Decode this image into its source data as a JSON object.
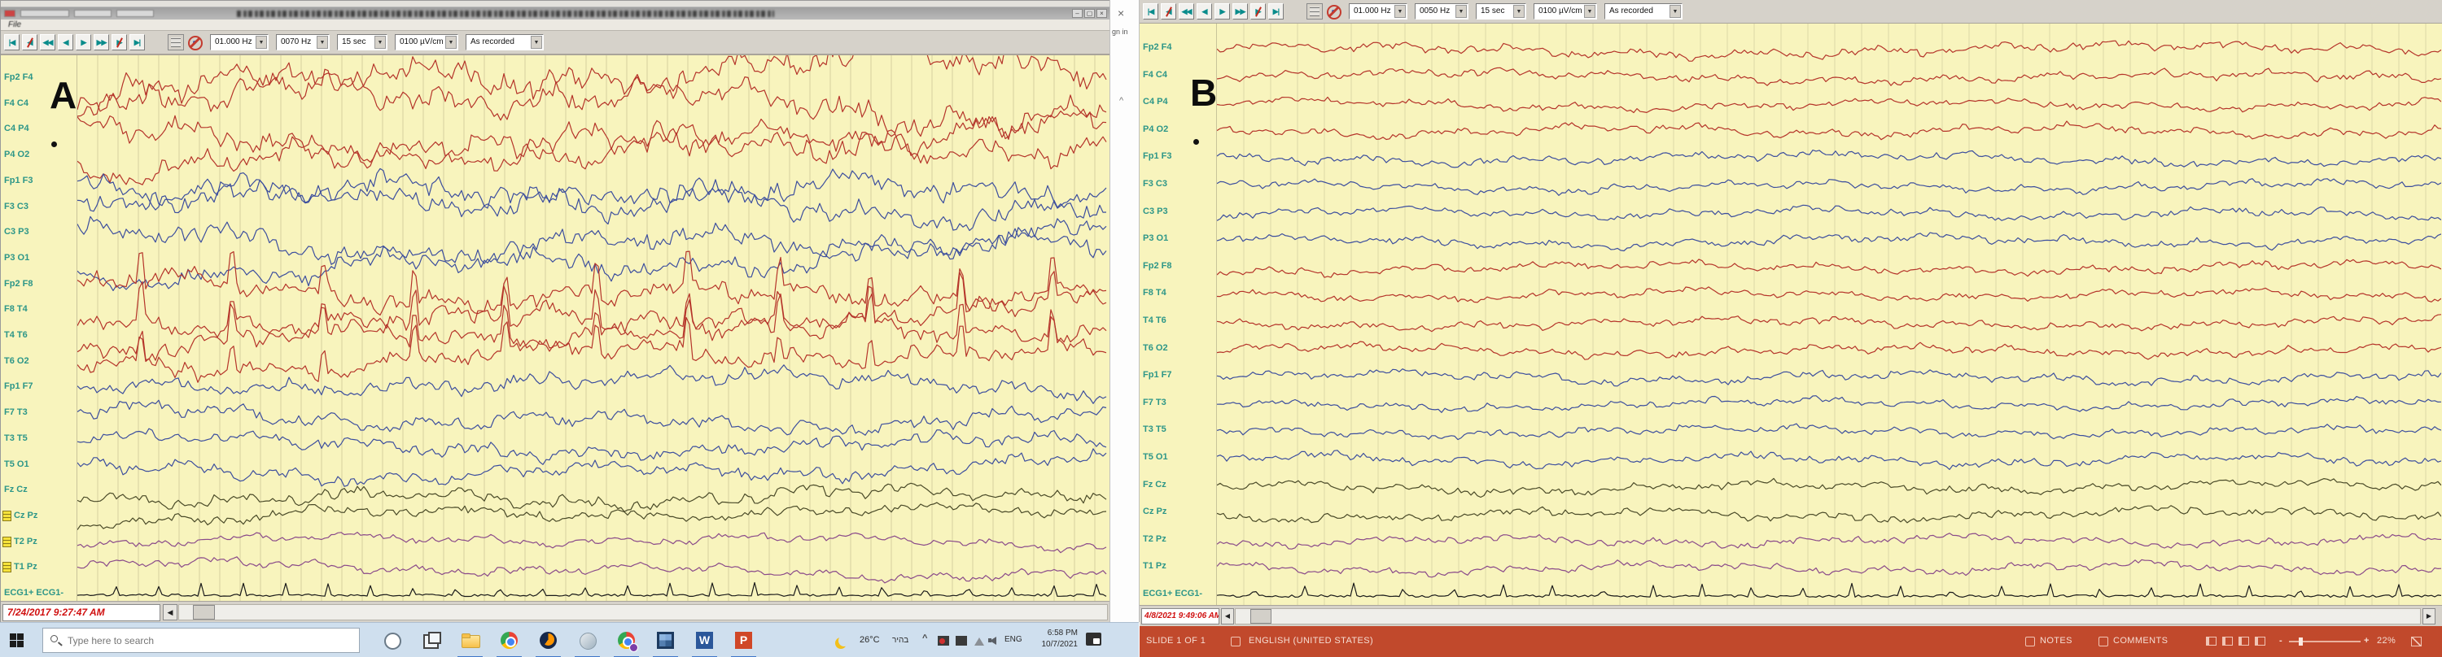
{
  "panel_a": {
    "letter": "A",
    "menu_file": "File",
    "toolbar": {
      "buttons": [
        "|◀",
        "◀/",
        "◀◀",
        "◀",
        "▶",
        "▶▶",
        "▶/",
        "▶|"
      ],
      "dropdowns": [
        "01.000 Hz",
        "0070 Hz",
        "15 sec",
        "0100 µV/cm",
        "As recorded"
      ]
    },
    "channels": [
      {
        "label": "Fp2 F4",
        "color": "#b5342a",
        "amp": 34,
        "kind": "eeg"
      },
      {
        "label": "F4 C4",
        "color": "#b5342a",
        "amp": 32,
        "kind": "eeg"
      },
      {
        "label": "C4 P4",
        "color": "#b5342a",
        "amp": 30,
        "kind": "eeg"
      },
      {
        "label": "P4 O2",
        "color": "#b5342a",
        "amp": 28,
        "kind": "eeg"
      },
      {
        "label": "Fp1 F3",
        "color": "#3c4e9e",
        "amp": 28,
        "kind": "eeg"
      },
      {
        "label": "F3 C3",
        "color": "#3c4e9e",
        "amp": 26,
        "kind": "eeg"
      },
      {
        "label": "C3 P3",
        "color": "#3c4e9e",
        "amp": 26,
        "kind": "eeg"
      },
      {
        "label": "P3 O1",
        "color": "#3c4e9e",
        "amp": 24,
        "kind": "eeg"
      },
      {
        "label": "Fp2 F8",
        "color": "#b5342a",
        "amp": 24,
        "kind": "spiky"
      },
      {
        "label": "F8 T4",
        "color": "#b5342a",
        "amp": 24,
        "kind": "spiky"
      },
      {
        "label": "T4 T6",
        "color": "#b5342a",
        "amp": 22,
        "kind": "spiky"
      },
      {
        "label": "T6 O2",
        "color": "#b5342a",
        "amp": 22,
        "kind": "spiky"
      },
      {
        "label": "Fp1 F7",
        "color": "#3c4e9e",
        "amp": 18,
        "kind": "eeg"
      },
      {
        "label": "F7 T3",
        "color": "#3c4e9e",
        "amp": 17,
        "kind": "eeg"
      },
      {
        "label": "T3 T5",
        "color": "#3c4e9e",
        "amp": 16,
        "kind": "eeg"
      },
      {
        "label": "T5 O1",
        "color": "#3c4e9e",
        "amp": 16,
        "kind": "eeg"
      },
      {
        "label": "Fz Cz",
        "color": "#4a4a28",
        "amp": 15,
        "kind": "eeg"
      },
      {
        "label": "Cz Pz",
        "color": "#4a4a28",
        "amp": 13,
        "kind": "eeg",
        "note": true
      },
      {
        "label": "T2 Pz",
        "color": "#8a4a8a",
        "amp": 10,
        "kind": "eeg",
        "note": true
      },
      {
        "label": "T1 Pz",
        "color": "#8a4a8a",
        "amp": 10,
        "kind": "eeg",
        "note": true
      },
      {
        "label": "ECG1+ ECG1-",
        "color": "#1a1a1a",
        "amp": 3,
        "kind": "ecg"
      }
    ],
    "timestamp": "7/24/2017 9:27:47 AM",
    "grid_spacing": 25,
    "drift": 1.2,
    "seed": 11
  },
  "divider": {
    "close": "×",
    "sign_in": "gn in",
    "caret": "^"
  },
  "panel_b": {
    "letter": "B",
    "toolbar": {
      "buttons": [
        "|◀",
        "◀/",
        "◀◀",
        "◀",
        "▶",
        "▶▶",
        "▶/",
        "▶|"
      ],
      "dropdowns": [
        "01.000 Hz",
        "0050 Hz",
        "15 sec",
        "0100 µV/cm",
        "As recorded"
      ]
    },
    "channels": [
      {
        "label": "Fp2 F4",
        "color": "#b5342a",
        "amp": 11,
        "kind": "eeg"
      },
      {
        "label": "F4 C4",
        "color": "#b5342a",
        "amp": 10,
        "kind": "eeg"
      },
      {
        "label": "C4 P4",
        "color": "#b5342a",
        "amp": 9,
        "kind": "eeg"
      },
      {
        "label": "P4 O2",
        "color": "#b5342a",
        "amp": 10,
        "kind": "eeg"
      },
      {
        "label": "Fp1 F3",
        "color": "#3c4e9e",
        "amp": 10,
        "kind": "eeg"
      },
      {
        "label": "F3 C3",
        "color": "#3c4e9e",
        "amp": 9,
        "kind": "eeg"
      },
      {
        "label": "C3 P3",
        "color": "#3c4e9e",
        "amp": 9,
        "kind": "eeg"
      },
      {
        "label": "P3 O1",
        "color": "#3c4e9e",
        "amp": 10,
        "kind": "eeg"
      },
      {
        "label": "Fp2 F8",
        "color": "#b5342a",
        "amp": 10,
        "kind": "eeg"
      },
      {
        "label": "F8 T4",
        "color": "#b5342a",
        "amp": 9,
        "kind": "eeg"
      },
      {
        "label": "T4 T6",
        "color": "#b5342a",
        "amp": 9,
        "kind": "eeg"
      },
      {
        "label": "T6 O2",
        "color": "#b5342a",
        "amp": 9,
        "kind": "eeg"
      },
      {
        "label": "Fp1 F7",
        "color": "#3c4e9e",
        "amp": 10,
        "kind": "eeg"
      },
      {
        "label": "F7 T3",
        "color": "#3c4e9e",
        "amp": 9,
        "kind": "eeg"
      },
      {
        "label": "T3 T5",
        "color": "#3c4e9e",
        "amp": 9,
        "kind": "eeg"
      },
      {
        "label": "T5 O1",
        "color": "#3c4e9e",
        "amp": 10,
        "kind": "eeg"
      },
      {
        "label": "Fz Cz",
        "color": "#4a4a28",
        "amp": 10,
        "kind": "eeg"
      },
      {
        "label": "Cz Pz",
        "color": "#4a4a28",
        "amp": 10,
        "kind": "eeg"
      },
      {
        "label": "T2 Pz",
        "color": "#8a4a8a",
        "amp": 9,
        "kind": "eeg"
      },
      {
        "label": "T1 Pz",
        "color": "#8a4a8a",
        "amp": 9,
        "kind": "eeg"
      },
      {
        "label": "ECG1+ ECG1-",
        "color": "#1a1a1a",
        "amp": 3,
        "kind": "ecg"
      }
    ],
    "timestamp": "4/8/2021 9:49:06 AM",
    "grid_spacing": 33,
    "drift": 0.25,
    "seed": 77
  },
  "taskbar": {
    "search_placeholder": "Type here to search",
    "icons": [
      {
        "name": "cortana",
        "active": false
      },
      {
        "name": "taskview",
        "active": false
      },
      {
        "name": "explorer",
        "active": true
      },
      {
        "name": "chrome",
        "active": true
      },
      {
        "name": "firefox",
        "active": true
      },
      {
        "name": "grayapp",
        "active": true
      },
      {
        "name": "chrome-badge",
        "active": true
      },
      {
        "name": "tiles",
        "active": true
      },
      {
        "name": "word",
        "active": true
      },
      {
        "name": "powerpoint",
        "active": true
      }
    ],
    "tray": {
      "temp": "26°C",
      "weather": "בהיר",
      "caret": "^",
      "lang": "ENG",
      "time": "6:58 PM",
      "date": "10/7/2021"
    }
  },
  "ppt_bar": {
    "slide": "SLIDE 1 OF 1",
    "language": "ENGLISH (UNITED STATES)",
    "notes": "NOTES",
    "comments": "COMMENTS",
    "zoom_percent": "22%",
    "minus": "-",
    "plus": "+"
  }
}
